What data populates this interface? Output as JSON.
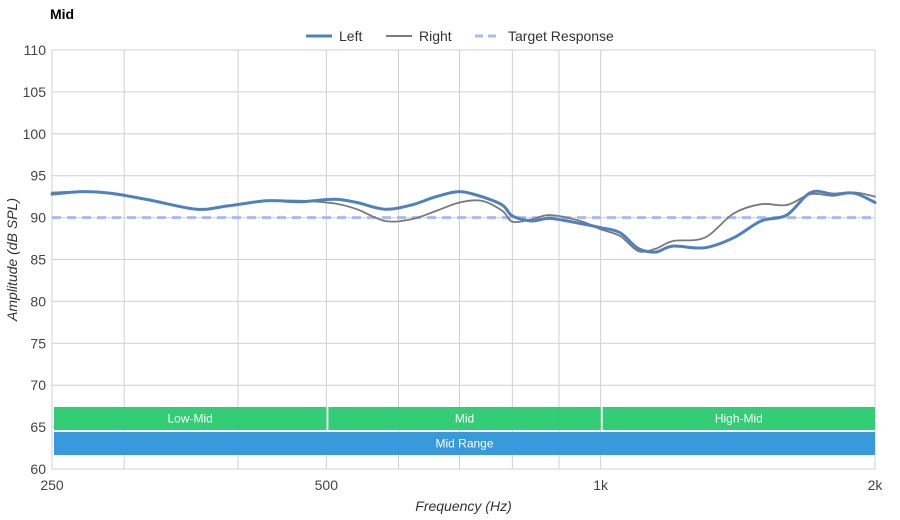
{
  "chart_data": {
    "type": "line",
    "title": "Mid",
    "xlabel": "Frequency (Hz)",
    "ylabel": "Amplitude (dB SPL)",
    "x_scale": "log",
    "xlim": [
      250,
      2000
    ],
    "ylim": [
      60,
      110
    ],
    "x_ticks": [
      250,
      500,
      1000,
      2000
    ],
    "x_tick_labels": [
      "250",
      "500",
      "1k",
      "2k"
    ],
    "x_minor_gridlines": [
      300,
      400,
      600,
      700,
      800,
      900
    ],
    "y_ticks": [
      60,
      65,
      70,
      75,
      80,
      85,
      90,
      95,
      100,
      105,
      110
    ],
    "y_tick_labels": [
      "60",
      "65",
      "70",
      "75",
      "80",
      "85",
      "90",
      "95",
      "100",
      "105",
      "110"
    ],
    "grid": true,
    "legend_position": "top-center",
    "series": [
      {
        "name": "Left",
        "color": "#4f81bd",
        "style": "solid",
        "x": [
          250,
          270,
          290,
          320,
          360,
          390,
          430,
          470,
          510,
          540,
          580,
          620,
          660,
          700,
          740,
          780,
          800,
          840,
          880,
          950,
          1000,
          1050,
          1100,
          1150,
          1200,
          1300,
          1400,
          1500,
          1600,
          1700,
          1800,
          1900,
          2000
        ],
        "values": [
          92.8,
          93.1,
          92.9,
          92.1,
          91.0,
          91.4,
          92.0,
          91.9,
          92.2,
          91.8,
          91.0,
          91.5,
          92.5,
          93.1,
          92.5,
          91.5,
          90.2,
          89.6,
          89.9,
          89.3,
          88.8,
          88.2,
          86.3,
          85.9,
          86.6,
          86.4,
          87.6,
          89.6,
          90.3,
          93.0,
          92.8,
          92.9,
          91.8
        ]
      },
      {
        "name": "Right",
        "color": "#7a7a7a",
        "style": "solid",
        "x": [
          250,
          270,
          290,
          320,
          360,
          390,
          430,
          470,
          510,
          540,
          580,
          620,
          660,
          700,
          740,
          780,
          800,
          840,
          880,
          950,
          1000,
          1050,
          1100,
          1150,
          1200,
          1300,
          1400,
          1500,
          1600,
          1700,
          1800,
          1900,
          2000
        ],
        "values": [
          93.0,
          93.1,
          92.9,
          92.1,
          91.0,
          91.4,
          92.0,
          92.0,
          91.7,
          91.0,
          89.6,
          89.8,
          90.8,
          91.8,
          92.0,
          90.8,
          89.5,
          89.8,
          90.3,
          89.6,
          88.6,
          87.8,
          86.0,
          86.3,
          87.2,
          87.6,
          90.5,
          91.6,
          91.5,
          92.8,
          92.6,
          93.0,
          92.5
        ]
      },
      {
        "name": "Target Response",
        "color": "#aabbf2",
        "style": "dashed",
        "x": [
          250,
          2000
        ],
        "values": [
          90,
          90
        ]
      }
    ],
    "bands": [
      {
        "label": "Low-Mid",
        "from": 250,
        "to": 500,
        "color": "#2ecc71"
      },
      {
        "label": "Mid",
        "from": 500,
        "to": 1000,
        "color": "#2ecc71"
      },
      {
        "label": "High-Mid",
        "from": 1000,
        "to": 2000,
        "color": "#2ecc71"
      },
      {
        "label": "Mid Range",
        "from": 250,
        "to": 2000,
        "color": "#3498db"
      }
    ]
  }
}
